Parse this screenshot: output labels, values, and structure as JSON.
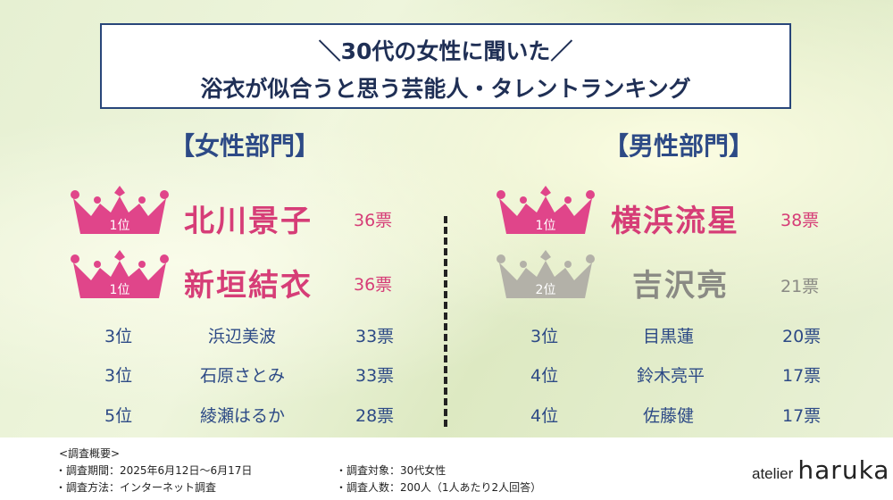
{
  "title": {
    "line1": "＼30代の女性に聞いた／",
    "line2": "浴衣が似合うと思う芸能人・タレントランキング"
  },
  "colors": {
    "accent_pink": "#d63d77",
    "navy": "#2d4a86",
    "silver": "#b3b1a8",
    "crown_pink": "#e0458a"
  },
  "female": {
    "header": "【女性部門】",
    "top": [
      {
        "rank": "1位",
        "name": "北川景子",
        "votes": "36票",
        "icon": "gold-crown-icon"
      },
      {
        "rank": "1位",
        "name": "新垣結衣",
        "votes": "36票",
        "icon": "gold-crown-icon"
      }
    ],
    "rest": [
      {
        "rank": "3位",
        "name": "浜辺美波",
        "votes": "33票"
      },
      {
        "rank": "3位",
        "name": "石原さとみ",
        "votes": "33票"
      },
      {
        "rank": "5位",
        "name": "綾瀬はるか",
        "votes": "28票"
      }
    ]
  },
  "male": {
    "header": "【男性部門】",
    "top": [
      {
        "rank": "1位",
        "name": "横浜流星",
        "votes": "38票",
        "icon": "gold-crown-icon"
      },
      {
        "rank": "2位",
        "name": "吉沢亮",
        "votes": "21票",
        "icon": "silver-crown-icon"
      }
    ],
    "rest": [
      {
        "rank": "3位",
        "name": "目黒蓮",
        "votes": "20票"
      },
      {
        "rank": "4位",
        "name": "鈴木亮平",
        "votes": "17票"
      },
      {
        "rank": "4位",
        "name": "佐藤健",
        "votes": "17票"
      }
    ]
  },
  "footer": {
    "heading": "<調査概要>",
    "period": "・調査期間：2025年6月12日～6月17日",
    "method": "・調査方法：インターネット調査",
    "target": "・調査対象：30代女性",
    "count": "・調査人数：200人（1人あたり2人回答）",
    "logo_prefix": "atelier",
    "logo_main": "haruka"
  }
}
